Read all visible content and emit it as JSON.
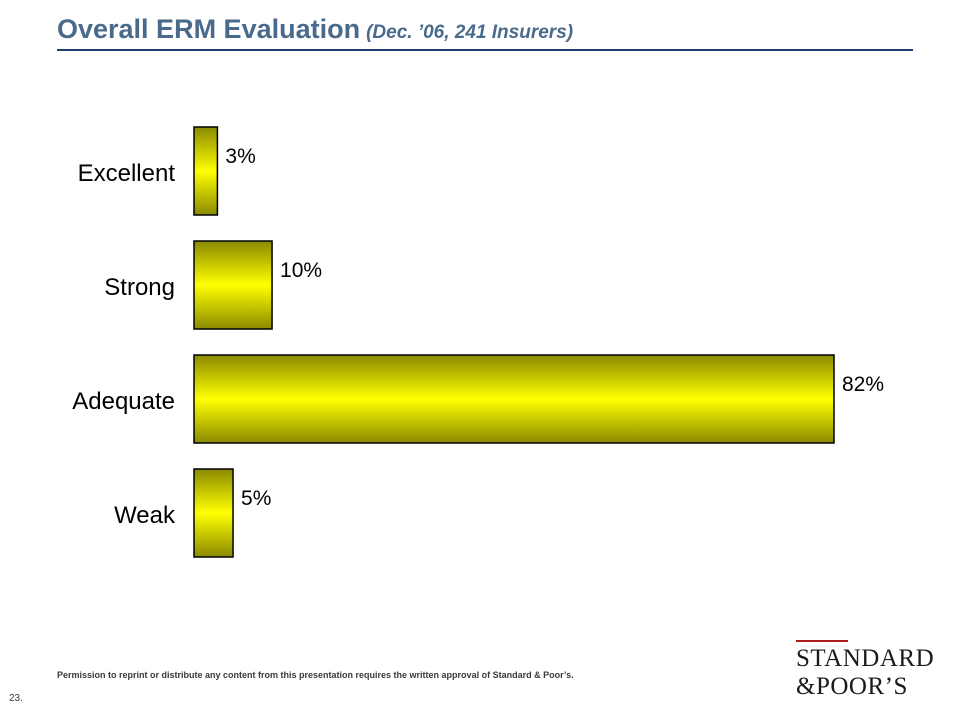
{
  "title": {
    "main": "Overall ERM Evaluation",
    "sub": "(Dec. ’06, 241 Insurers)"
  },
  "chart_data": {
    "type": "bar",
    "orientation": "horizontal",
    "categories": [
      "Excellent",
      "Strong",
      "Adequate",
      "Weak"
    ],
    "values": [
      3,
      10,
      82,
      5
    ],
    "data_labels": [
      "3%",
      "10%",
      "82%",
      "5%"
    ],
    "unit": "%",
    "xlim": [
      0,
      82
    ],
    "grid": false,
    "legend": "none",
    "bar_color_light": "#ffff00",
    "bar_color_dark": "#8a8a00",
    "bar_outline": "#000000"
  },
  "footer": {
    "permission_text": "Permission to reprint or distribute any content from this presentation requires the written approval of Standard & Poor’s.",
    "page_number": "23."
  },
  "logo": {
    "line1": "STANDARD",
    "line2": "&POOR’S"
  },
  "colors": {
    "title": "#4a6a8c",
    "rule": "#1f3f6f",
    "logo_accent": "#b01c1c"
  }
}
